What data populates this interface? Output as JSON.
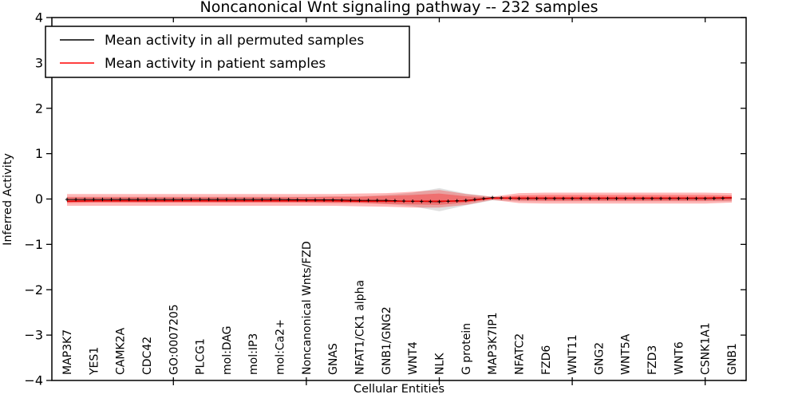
{
  "chart_data": {
    "type": "line",
    "title": "Noncanonical Wnt signaling pathway -- 232 samples",
    "xlabel": "Cellular Entities",
    "ylabel": "Inferred Activity",
    "ylim": [
      -4,
      4
    ],
    "yticks": [
      4,
      3,
      2,
      1,
      0,
      -1,
      -2,
      -3,
      -4
    ],
    "xtick_category_indices": [
      4,
      9,
      14,
      19,
      24
    ],
    "grid": false,
    "legend_position": "upper left",
    "categories": [
      "MAP3K7",
      "YES1",
      "CAMK2A",
      "CDC42",
      "GO:0007205",
      "PLCG1",
      "mol:DAG",
      "mol:IP3",
      "mol:Ca2+",
      "Noncanonical Wnts/FZD",
      "GNAS",
      "NFAT1/CK1 alpha",
      "GNB1/GNG2",
      "WNT4",
      "NLK",
      "G protein",
      "MAP3K7IP1",
      "NFATC2",
      "FZD6",
      "WNT11",
      "GNG2",
      "WNT5A",
      "FZD3",
      "WNT6",
      "CSNK1A1",
      "GNB1"
    ],
    "series": [
      {
        "name": "Mean activity in all permuted samples",
        "color": "#000000",
        "style": "line-with-plus-markers",
        "values": [
          -0.01,
          -0.01,
          -0.01,
          -0.01,
          -0.01,
          -0.01,
          -0.01,
          -0.01,
          -0.01,
          -0.02,
          -0.02,
          -0.03,
          -0.03,
          -0.05,
          -0.06,
          -0.03,
          0.03,
          0.01,
          0.01,
          0.01,
          0.01,
          0.01,
          0.01,
          0.01,
          0.01,
          0.02
        ]
      },
      {
        "name": "Mean activity in patient samples",
        "color": "#e40000",
        "style": "solid",
        "values": [
          -0.05,
          -0.04,
          -0.04,
          -0.04,
          -0.04,
          -0.04,
          -0.04,
          -0.04,
          -0.04,
          -0.04,
          -0.04,
          -0.05,
          -0.05,
          -0.05,
          -0.05,
          -0.04,
          0.02,
          0.02,
          0.02,
          0.02,
          0.02,
          0.02,
          0.02,
          0.02,
          0.02,
          0.03
        ]
      }
    ],
    "bands": [
      {
        "name": "permuted-samples-range",
        "color": "#999999",
        "opacity": 0.3,
        "upper": [
          0.05,
          0.05,
          0.05,
          0.05,
          0.05,
          0.05,
          0.05,
          0.05,
          0.05,
          0.05,
          0.06,
          0.06,
          0.09,
          0.14,
          0.24,
          0.12,
          0.05,
          0.05,
          0.05,
          0.05,
          0.05,
          0.05,
          0.05,
          0.05,
          0.05,
          0.05
        ],
        "lower": [
          -0.07,
          -0.07,
          -0.07,
          -0.07,
          -0.07,
          -0.07,
          -0.07,
          -0.07,
          -0.07,
          -0.07,
          -0.08,
          -0.08,
          -0.11,
          -0.16,
          -0.27,
          -0.14,
          -0.03,
          -0.05,
          -0.05,
          -0.05,
          -0.05,
          -0.05,
          -0.05,
          -0.05,
          -0.05,
          -0.05
        ]
      },
      {
        "name": "patient-samples-outer-band",
        "color": "#ff0000",
        "opacity": 0.28,
        "upper": [
          0.11,
          0.11,
          0.11,
          0.11,
          0.11,
          0.11,
          0.11,
          0.11,
          0.11,
          0.11,
          0.11,
          0.12,
          0.13,
          0.16,
          0.2,
          0.11,
          0.05,
          0.13,
          0.14,
          0.14,
          0.14,
          0.14,
          0.14,
          0.14,
          0.14,
          0.13
        ],
        "lower": [
          -0.15,
          -0.15,
          -0.15,
          -0.15,
          -0.15,
          -0.15,
          -0.15,
          -0.15,
          -0.15,
          -0.15,
          -0.15,
          -0.16,
          -0.17,
          -0.19,
          -0.19,
          -0.13,
          -0.02,
          -0.09,
          -0.1,
          -0.1,
          -0.1,
          -0.1,
          -0.1,
          -0.1,
          -0.1,
          -0.08
        ],
        "name2": ""
      },
      {
        "name": "patient-samples-inner-band",
        "color": "#ff0000",
        "opacity": 0.3,
        "upper": [
          0.04,
          0.04,
          0.04,
          0.04,
          0.04,
          0.04,
          0.04,
          0.04,
          0.04,
          0.04,
          0.05,
          0.05,
          0.07,
          0.09,
          0.12,
          0.06,
          0.03,
          0.08,
          0.09,
          0.09,
          0.09,
          0.09,
          0.09,
          0.09,
          0.09,
          0.08
        ],
        "lower": [
          -0.09,
          -0.08,
          -0.08,
          -0.08,
          -0.08,
          -0.08,
          -0.08,
          -0.08,
          -0.08,
          -0.08,
          -0.09,
          -0.09,
          -0.11,
          -0.12,
          -0.13,
          -0.08,
          0.0,
          -0.03,
          -0.04,
          -0.04,
          -0.04,
          -0.04,
          -0.04,
          -0.04,
          -0.04,
          -0.03
        ]
      }
    ],
    "legend": {
      "entries": [
        {
          "label": "Mean activity in all permuted samples",
          "color": "#000000"
        },
        {
          "label": "Mean activity in patient samples",
          "color": "#ff0000"
        }
      ]
    },
    "frame_color": "#000000",
    "background_color": "#ffffff"
  }
}
